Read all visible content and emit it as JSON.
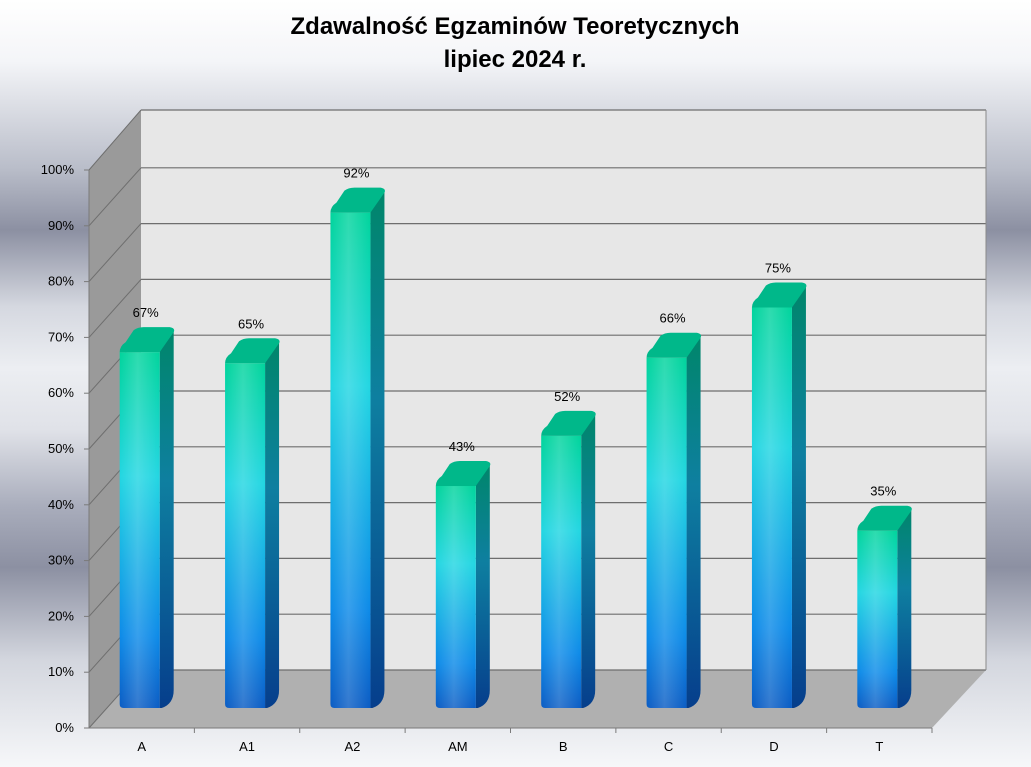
{
  "chart_data": {
    "type": "bar",
    "title": "Zdawalność Egzaminów Teoretycznych",
    "subtitle": "lipiec 2024 r.",
    "categories": [
      "A",
      "A1",
      "A2",
      "AM",
      "B",
      "C",
      "D",
      "T"
    ],
    "values": [
      67,
      65,
      92,
      43,
      52,
      66,
      75,
      35
    ],
    "data_labels": [
      "67%",
      "65%",
      "92%",
      "43%",
      "52%",
      "66%",
      "75%",
      "35%"
    ],
    "y_ticks": [
      "0%",
      "10%",
      "20%",
      "30%",
      "40%",
      "50%",
      "60%",
      "70%",
      "80%",
      "90%",
      "100%"
    ],
    "ylim": [
      0,
      100
    ],
    "xlabel": "",
    "ylabel": "",
    "grid": true,
    "legend": "none",
    "colors": {
      "bar_top": "#00d9a0",
      "bar_mid": "#2ad8e0",
      "bar_bottom": "#0a6fd8",
      "wall": "#e7e7e7",
      "side_wall": "#9a9a9a",
      "floor": "#b0b0b0"
    }
  }
}
